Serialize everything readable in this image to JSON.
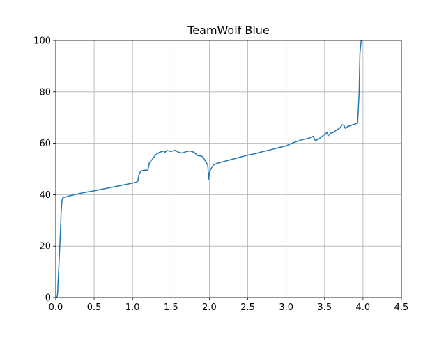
{
  "chart_data": {
    "type": "line",
    "title": "TeamWolf Blue",
    "xlabel": "",
    "ylabel": "",
    "xlim": [
      0,
      4.5
    ],
    "ylim": [
      0,
      100
    ],
    "xticks": [
      0.0,
      0.5,
      1.0,
      1.5,
      2.0,
      2.5,
      3.0,
      3.5,
      4.0,
      4.5
    ],
    "xtick_labels": [
      "0.0",
      "0.5",
      "1.0",
      "1.5",
      "2.0",
      "2.5",
      "3.0",
      "3.5",
      "4.0",
      "4.5"
    ],
    "yticks": [
      0,
      20,
      40,
      60,
      80,
      100
    ],
    "ytick_labels": [
      "0",
      "20",
      "40",
      "60",
      "80",
      "100"
    ],
    "grid": true,
    "legend": false,
    "series": [
      {
        "color": "#1f77b4",
        "x": [
          0.0,
          0.01,
          0.02,
          0.025,
          0.03,
          0.04,
          0.05,
          0.06,
          0.07,
          0.08,
          0.09,
          0.1,
          0.15,
          0.2,
          0.3,
          0.4,
          0.5,
          0.6,
          0.7,
          0.8,
          0.9,
          1.0,
          1.05,
          1.07,
          1.08,
          1.1,
          1.12,
          1.15,
          1.2,
          1.22,
          1.25,
          1.3,
          1.35,
          1.4,
          1.42,
          1.45,
          1.5,
          1.55,
          1.6,
          1.65,
          1.7,
          1.75,
          1.8,
          1.85,
          1.9,
          1.92,
          1.95,
          1.98,
          1.99,
          2.0,
          2.02,
          2.05,
          2.1,
          2.2,
          2.3,
          2.4,
          2.5,
          2.6,
          2.7,
          2.8,
          2.9,
          3.0,
          3.1,
          3.2,
          3.3,
          3.35,
          3.38,
          3.4,
          3.45,
          3.5,
          3.53,
          3.55,
          3.58,
          3.6,
          3.65,
          3.7,
          3.73,
          3.75,
          3.77,
          3.8,
          3.85,
          3.9,
          3.93,
          3.95,
          3.96,
          3.98
        ],
        "y": [
          0.0,
          0.0,
          0.5,
          2.0,
          6.0,
          12.0,
          18.0,
          25.0,
          33.0,
          37.5,
          38.7,
          38.9,
          39.3,
          39.7,
          40.4,
          41.0,
          41.5,
          42.1,
          42.7,
          43.3,
          43.9,
          44.5,
          44.9,
          45.3,
          47.5,
          48.8,
          49.3,
          49.5,
          49.6,
          52.5,
          53.5,
          55.5,
          56.5,
          57.0,
          56.5,
          57.2,
          56.8,
          57.3,
          56.5,
          56.2,
          56.8,
          57.0,
          56.5,
          55.2,
          55.0,
          54.5,
          53.0,
          51.5,
          46.0,
          48.5,
          50.0,
          51.5,
          52.2,
          53.0,
          53.8,
          54.6,
          55.4,
          56.0,
          56.8,
          57.5,
          58.3,
          59.0,
          60.3,
          61.3,
          62.0,
          62.7,
          61.0,
          61.3,
          62.2,
          63.5,
          64.2,
          63.0,
          64.0,
          64.0,
          65.0,
          66.0,
          67.2,
          67.0,
          65.8,
          66.5,
          67.0,
          67.5,
          67.8,
          80.0,
          95.0,
          101.0
        ]
      }
    ]
  }
}
